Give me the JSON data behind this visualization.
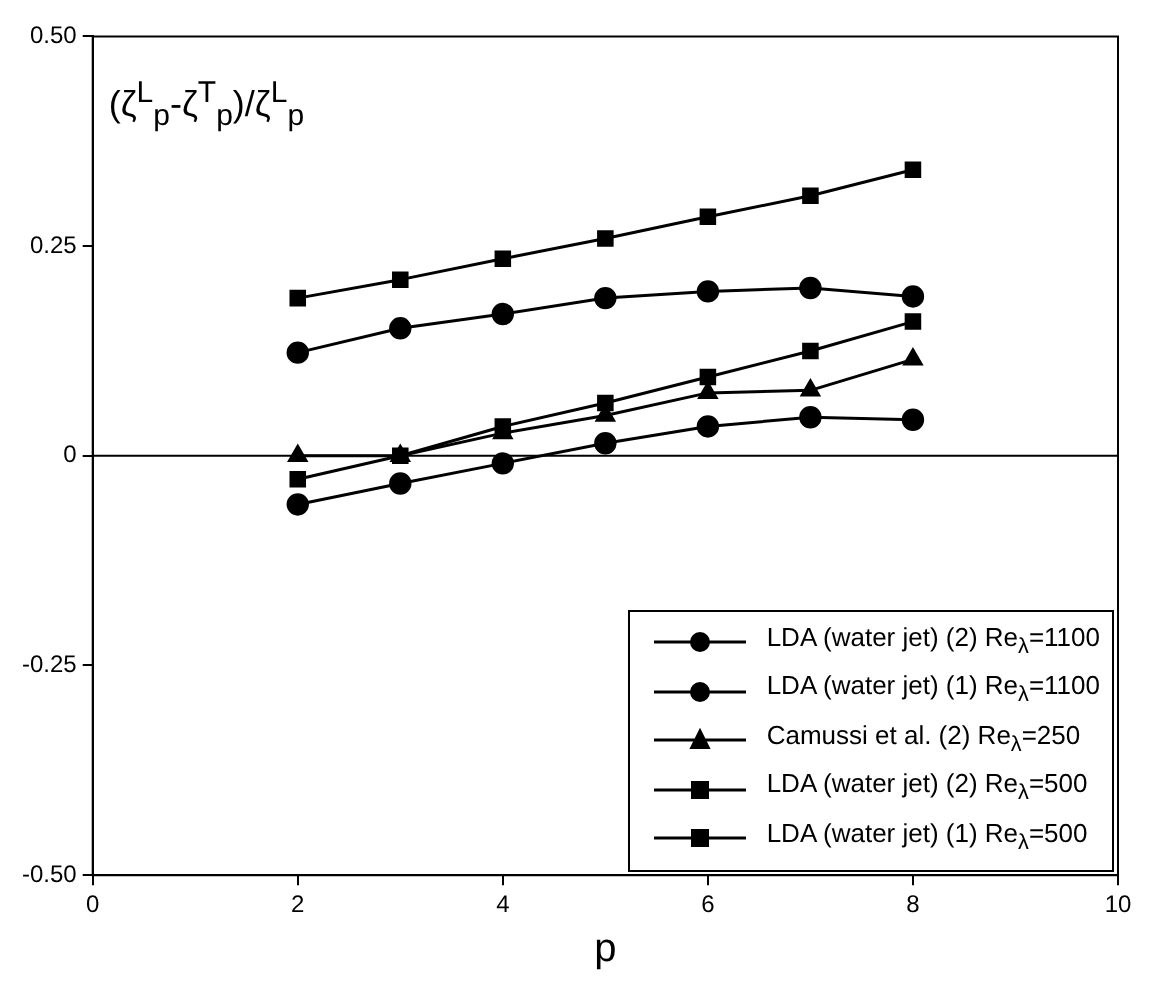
{
  "chart_data": {
    "type": "line",
    "ylabel": "(ζ$^{L}$$_{p}$-ζ$^{T}$$_{p}$)/ζ$^{L}$$_{p}$",
    "xlabel": "p",
    "x": [
      2,
      3,
      4,
      5,
      6,
      7,
      8
    ],
    "series": [
      {
        "name": "LDA (water jet) (2) Re$_{λ}$=1100",
        "color": "#000000",
        "marker": "circle",
        "values": [
          -0.058,
          -0.033,
          -0.009,
          0.015,
          0.035,
          0.046,
          0.043
        ]
      },
      {
        "name": "LDA (water jet) (1) Re$_{λ}$=1100",
        "color": "#000000",
        "marker": "circle",
        "values": [
          0.123,
          0.152,
          0.169,
          0.188,
          0.196,
          0.2,
          0.19
        ]
      },
      {
        "name": "Camussi et al. (2) Re$_{λ}$=250",
        "color": "#000000",
        "marker": "triangle",
        "values": [
          0.0,
          0.0,
          0.027,
          0.048,
          0.075,
          0.078,
          0.115
        ]
      },
      {
        "name": "LDA (water jet) (2) Re$_{λ}$=500",
        "color": "#000000",
        "marker": "square",
        "values": [
          -0.028,
          0.0,
          0.035,
          0.063,
          0.094,
          0.125,
          0.16
        ]
      },
      {
        "name": "LDA (water jet) (1) Re$_{λ}$=500",
        "color": "#000000",
        "marker": "square",
        "values": [
          0.188,
          0.21,
          0.235,
          0.259,
          0.285,
          0.31,
          0.341
        ]
      }
    ],
    "xlim": [
      0,
      10
    ],
    "xticks": [
      0,
      2,
      4,
      6,
      8,
      10
    ],
    "ylim": [
      -0.5,
      0.5
    ],
    "yticks": [
      {
        "value": -0.5,
        "label": "-0.50"
      },
      {
        "value": -0.25,
        "label": "-0.25"
      },
      0,
      {
        "value": 0.25,
        "label": "0.25"
      },
      {
        "value": 0.5,
        "label": "0.50"
      }
    ],
    "ref_lines": [
      {
        "axis": "y",
        "value": 0,
        "color": "#000000"
      }
    ],
    "grid": false,
    "legend": "bottom right",
    "line_style": "solid"
  }
}
